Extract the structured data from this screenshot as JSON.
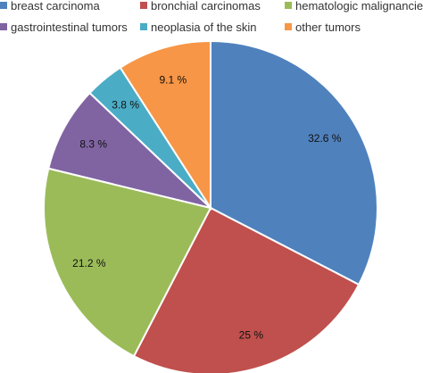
{
  "chart_data": {
    "type": "pie",
    "title": "",
    "legend_position": "top",
    "start_angle_deg": 0,
    "direction": "clockwise",
    "slices": [
      {
        "name": "breast carcinoma",
        "value": 32.6,
        "label": "32.6 %",
        "color": "#4f81bd"
      },
      {
        "name": "bronchial carcinomas",
        "value": 25,
        "label": "25 %",
        "color": "#c0504d"
      },
      {
        "name": "hematologic malignancies",
        "value": 21.2,
        "label": "21.2 %",
        "color": "#9bbb59"
      },
      {
        "name": "gastrointestinal tumors",
        "value": 8.3,
        "label": "8.3 %",
        "color": "#8064a2"
      },
      {
        "name": "neoplasia of the skin",
        "value": 3.8,
        "label": "3.8 %",
        "color": "#4bacc6"
      },
      {
        "name": "other tumors",
        "value": 9.1,
        "label": "9.1 %",
        "color": "#f79646"
      }
    ]
  }
}
